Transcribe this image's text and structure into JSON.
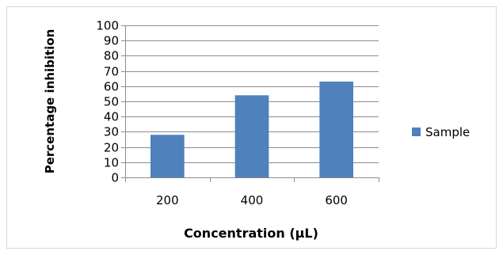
{
  "chart_data": {
    "type": "bar",
    "categories": [
      "200",
      "400",
      "600"
    ],
    "series": [
      {
        "name": "Sample",
        "values": [
          28,
          54,
          63
        ],
        "color": "#4F81BD"
      }
    ],
    "title": "",
    "xlabel": "Concentration (µL)",
    "ylabel": "Percentage inhibition",
    "ylim": [
      0,
      100
    ],
    "yticks": [
      "0",
      "10",
      "20",
      "30",
      "40",
      "50",
      "60",
      "70",
      "80",
      "90",
      "100"
    ],
    "grid": true,
    "legend": "right",
    "colors": {
      "bar": "#4F81BD",
      "grid": "#8C8C8C",
      "axis": "#8C8C8C",
      "frame": "#D9D9D9"
    }
  }
}
